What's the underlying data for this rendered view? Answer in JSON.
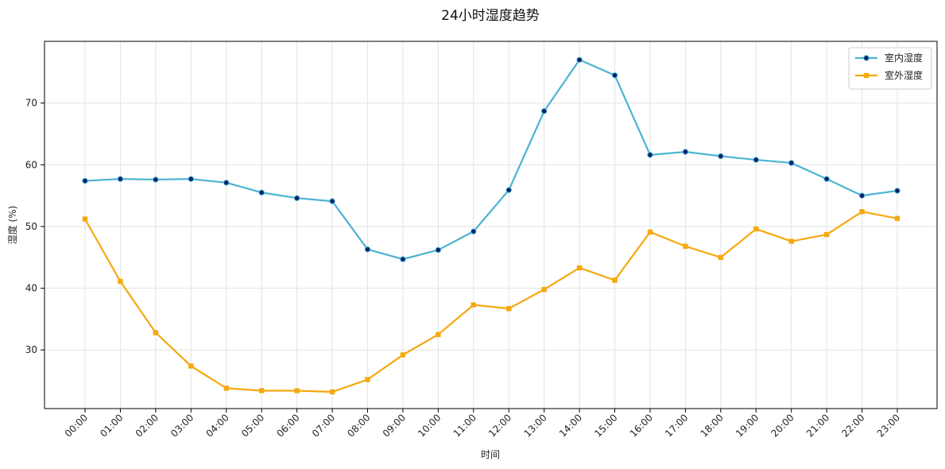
{
  "chart_data": {
    "type": "line",
    "title": "24小时湿度趋势",
    "xlabel": "时间",
    "ylabel": "湿度 (%)",
    "categories": [
      "00:00",
      "01:00",
      "02:00",
      "03:00",
      "04:00",
      "05:00",
      "06:00",
      "07:00",
      "08:00",
      "09:00",
      "10:00",
      "11:00",
      "12:00",
      "13:00",
      "14:00",
      "15:00",
      "16:00",
      "17:00",
      "18:00",
      "19:00",
      "20:00",
      "21:00",
      "22:00",
      "23:00"
    ],
    "ylim": [
      20.5,
      80.0
    ],
    "yticks": [
      30,
      40,
      50,
      60,
      70
    ],
    "grid": true,
    "legend_position": "top-right",
    "series": [
      {
        "name": "室内湿度",
        "color": "#4bb4d2",
        "marker": "circle",
        "marker_fill": "#0a1f6b",
        "values": [
          57.4,
          57.7,
          57.6,
          57.7,
          57.1,
          55.5,
          54.6,
          54.1,
          46.3,
          44.7,
          46.2,
          49.2,
          55.9,
          68.7,
          77.0,
          74.5,
          61.6,
          62.1,
          61.4,
          60.8,
          60.3,
          57.7,
          55.0,
          55.8
        ]
      },
      {
        "name": "室外湿度",
        "color": "#f5a80f",
        "marker": "square",
        "marker_fill": "#f5a80f",
        "values": [
          51.2,
          41.1,
          32.8,
          27.4,
          23.8,
          23.4,
          23.4,
          23.2,
          25.2,
          29.2,
          32.5,
          37.3,
          36.7,
          39.8,
          43.3,
          41.3,
          49.1,
          46.8,
          45.0,
          49.6,
          47.6,
          48.7,
          52.4,
          51.3
        ]
      }
    ]
  }
}
